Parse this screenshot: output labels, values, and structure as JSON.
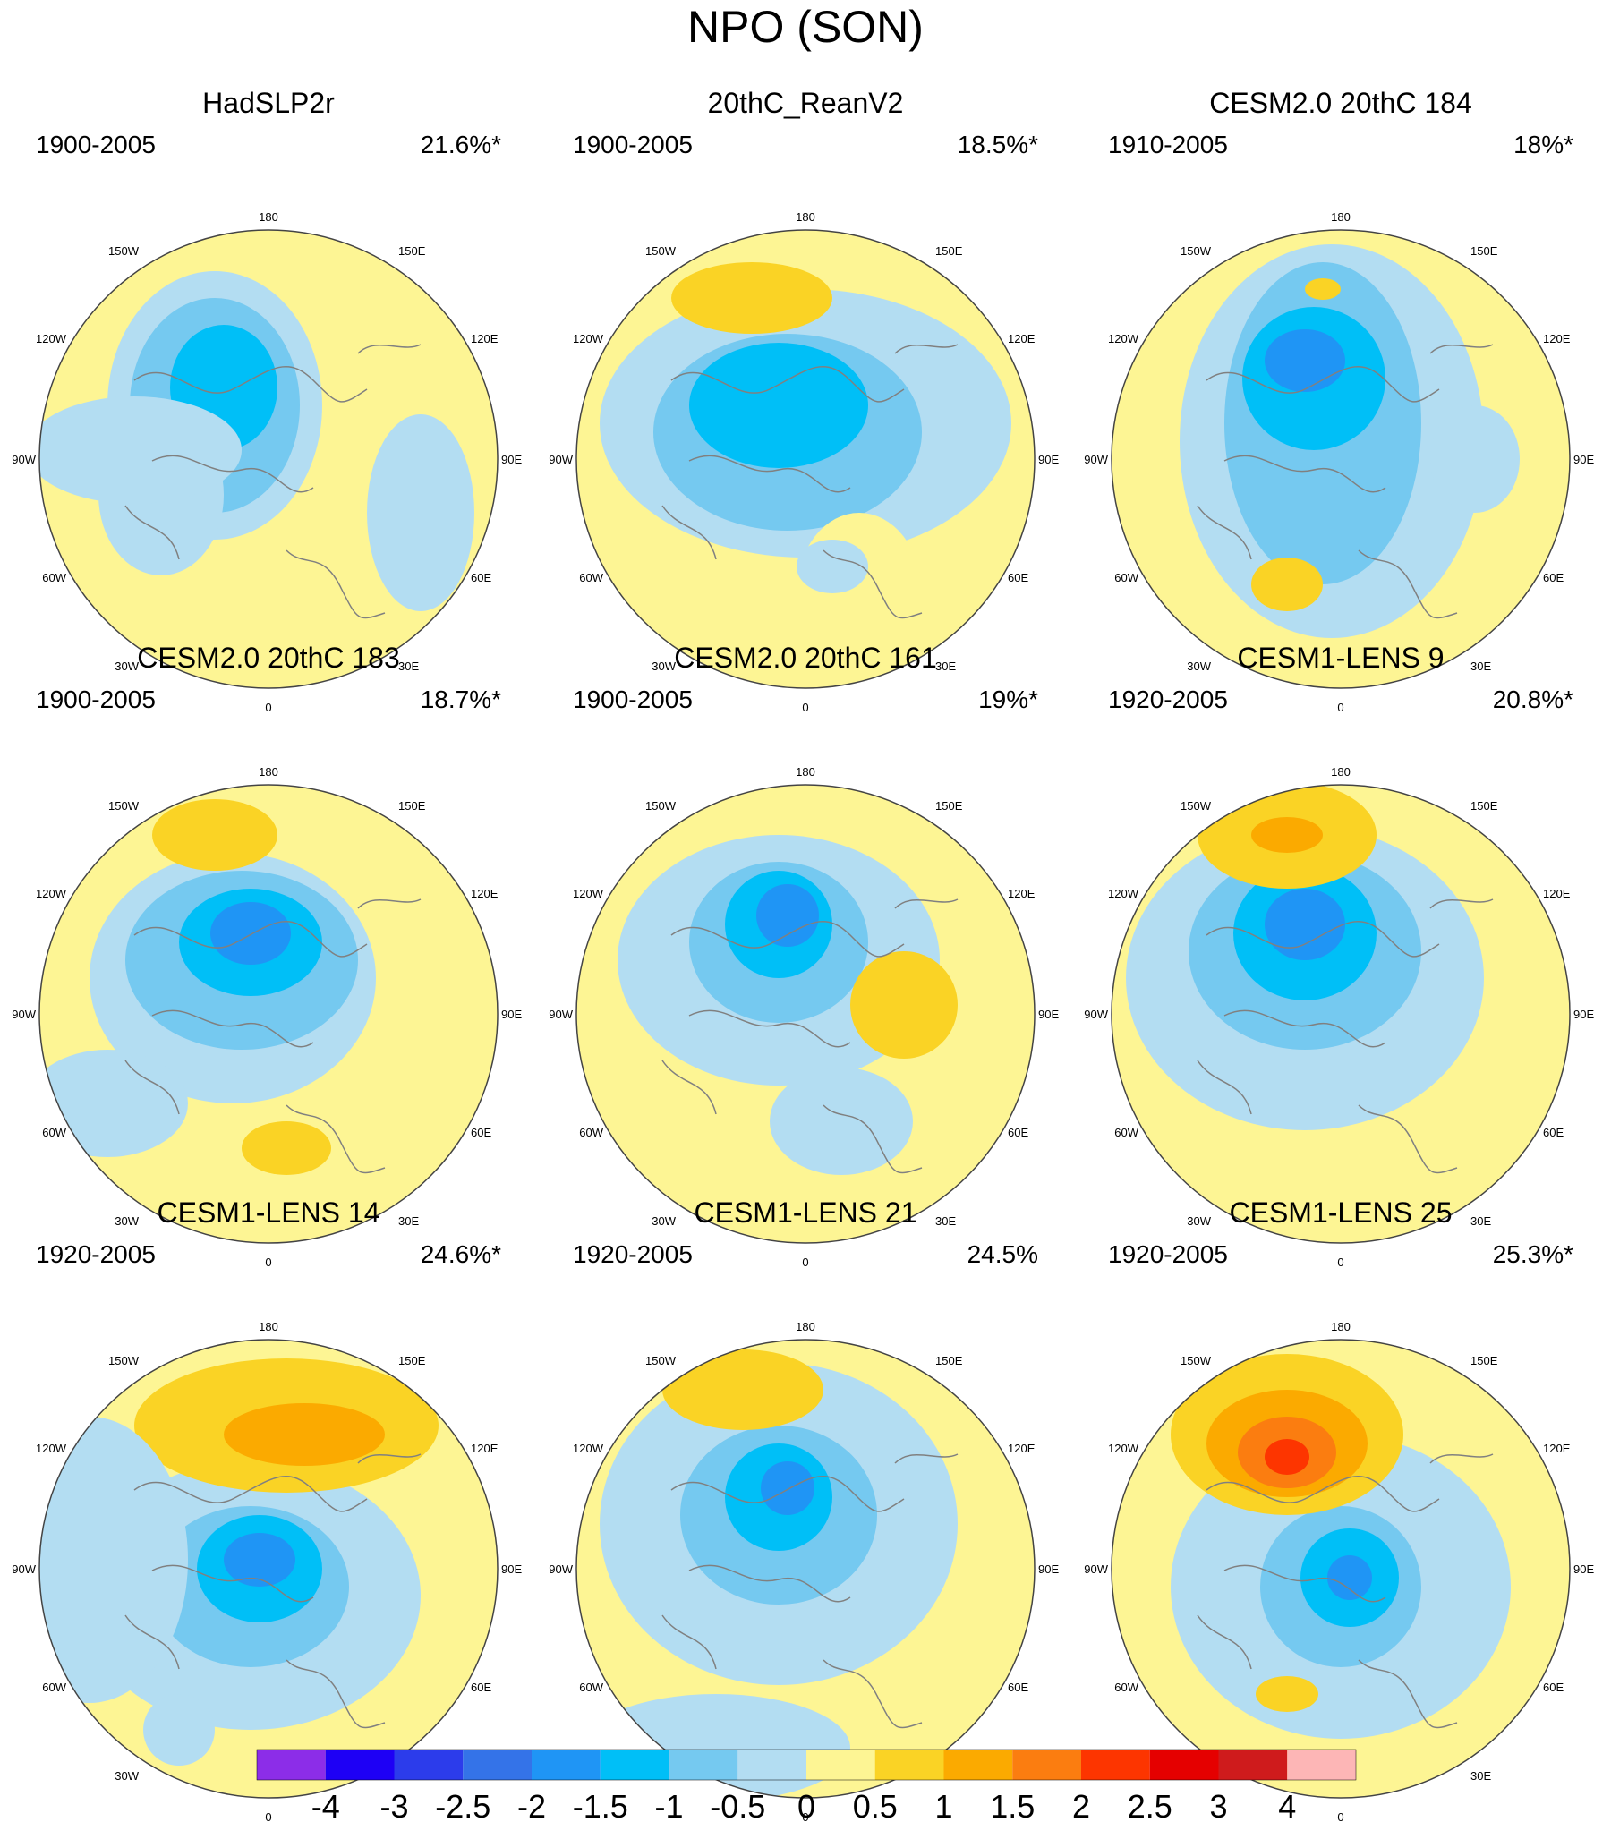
{
  "title": "NPO (SON)",
  "colors": {
    "levels": [
      "#8c2de8",
      "#1e00f5",
      "#2c3ceb",
      "#3473e8",
      "#1f95f5",
      "#00bff7",
      "#75c9f0",
      "#b3ddf2",
      "#fdf594",
      "#fad325",
      "#fbaa00",
      "#fb7d10",
      "#fd3500",
      "#e50000",
      "#cf1b1c",
      "#fdb6b6"
    ],
    "map_edge": "#444444",
    "coast": "#808080"
  },
  "colorbar": {
    "labels": [
      "-4",
      "-3",
      "-2.5",
      "-2",
      "-1.5",
      "-1",
      "-0.5",
      "0",
      "0.5",
      "1",
      "1.5",
      "2",
      "2.5",
      "3",
      "4"
    ]
  },
  "longitude_labels": {
    "top": "180",
    "bottom": "0",
    "left_upper": "120W",
    "left_mid": "90W",
    "left_lower": "60W",
    "right_upper": "120E",
    "right_mid": "90E",
    "right_lower": "60E",
    "upper_left": "150W",
    "upper_right": "150E",
    "lower_left": "30W",
    "lower_right": "30E"
  },
  "panels": [
    {
      "title": "HadSLP2r",
      "period": "1900-2005",
      "percent": "21.6%*"
    },
    {
      "title": "20thC_ReanV2",
      "period": "1900-2005",
      "percent": "18.5%*"
    },
    {
      "title": "CESM2.0 20thC 184",
      "period": "1910-2005",
      "percent": "18%*"
    },
    {
      "title": "CESM2.0 20thC 183",
      "period": "1900-2005",
      "percent": "18.7%*"
    },
    {
      "title": "CESM2.0 20thC 161",
      "period": "1900-2005",
      "percent": "19%*"
    },
    {
      "title": "CESM1-LENS 9",
      "period": "1920-2005",
      "percent": "20.8%*"
    },
    {
      "title": "CESM1-LENS 14",
      "period": "1920-2005",
      "percent": "24.6%*"
    },
    {
      "title": "CESM1-LENS 21",
      "period": "1920-2005",
      "percent": "24.5%"
    },
    {
      "title": "CESM1-LENS 25",
      "period": "1920-2005",
      "percent": "25.3%*"
    }
  ]
}
